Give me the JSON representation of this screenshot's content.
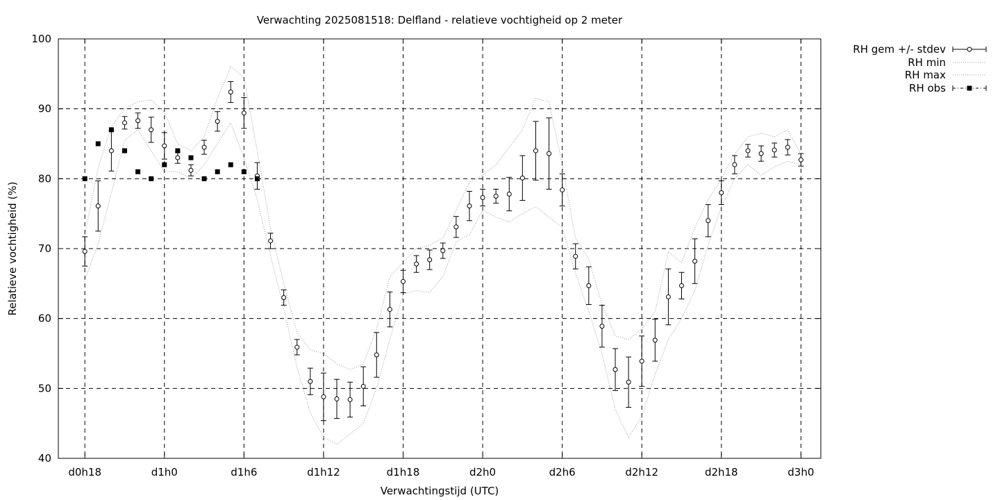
{
  "chart_data": {
    "type": "line",
    "title": "Verwachting 2025081518: Delfland - relatieve vochtigheid op 2 meter",
    "xlabel": "Verwachtingstijd (UTC)",
    "ylabel": "Relatieve vochtigheid (%)",
    "xlim": [
      -2,
      55.5
    ],
    "ylim": [
      40,
      100
    ],
    "yticks": [
      40,
      50,
      60,
      70,
      80,
      90,
      100
    ],
    "xticks": [
      {
        "x": 0,
        "label": "d0h18"
      },
      {
        "x": 6,
        "label": "d1h0"
      },
      {
        "x": 12,
        "label": "d1h6"
      },
      {
        "x": 18,
        "label": "d1h12"
      },
      {
        "x": 24,
        "label": "d1h18"
      },
      {
        "x": 30,
        "label": "d2h0"
      },
      {
        "x": 36,
        "label": "d2h6"
      },
      {
        "x": 42,
        "label": "d2h12"
      },
      {
        "x": 48,
        "label": "d2h18"
      },
      {
        "x": 54,
        "label": "d3h0"
      }
    ],
    "x_unit": "uren sinds d0h18",
    "grid": true,
    "legend_position": "outside-right",
    "series": [
      {
        "name": "RH gem +/- stdev",
        "style": "errorbars-open-circle",
        "x": [
          0,
          1,
          2,
          3,
          4,
          5,
          6,
          7,
          8,
          9,
          10,
          11,
          12,
          13,
          14,
          15,
          16,
          17,
          18,
          19,
          20,
          21,
          22,
          23,
          24,
          25,
          26,
          27,
          28,
          29,
          30,
          31,
          32,
          33,
          34,
          35,
          36,
          37,
          38,
          39,
          40,
          41,
          42,
          43,
          44,
          45,
          46,
          47,
          48,
          49,
          50,
          51,
          52,
          53,
          54
        ],
        "mean": [
          69.6,
          76.1,
          84.0,
          88.0,
          88.3,
          87.0,
          84.7,
          83.0,
          81.2,
          84.5,
          88.2,
          92.4,
          89.4,
          80.4,
          71.1,
          63.0,
          55.9,
          51.0,
          48.8,
          48.5,
          48.4,
          50.3,
          54.8,
          61.3,
          65.3,
          67.8,
          68.4,
          69.7,
          73.1,
          76.1,
          77.3,
          77.5,
          77.8,
          80.1,
          84.0,
          83.6,
          78.4,
          68.9,
          64.7,
          58.9,
          52.7,
          50.9,
          53.9,
          56.9,
          63.1,
          64.7,
          68.2,
          74.0,
          78.0,
          82.0,
          84.0,
          83.6,
          84.1,
          84.5,
          82.7
        ],
        "stdev": [
          2.1,
          3.6,
          2.9,
          0.9,
          1.1,
          1.8,
          1.9,
          0.8,
          0.8,
          1.0,
          1.4,
          1.5,
          2.2,
          1.9,
          1.1,
          1.1,
          1.1,
          1.9,
          3.4,
          2.8,
          2.5,
          2.8,
          3.2,
          2.5,
          1.6,
          1.2,
          1.4,
          1.1,
          1.5,
          2.1,
          1.2,
          1.0,
          2.4,
          3.2,
          4.2,
          5.1,
          2.3,
          1.8,
          2.7,
          3.0,
          3.0,
          3.6,
          3.6,
          3.0,
          4.0,
          1.9,
          3.2,
          2.3,
          1.7,
          1.3,
          0.9,
          1.1,
          1.0,
          1.1,
          0.9
        ]
      },
      {
        "name": "RH min",
        "style": "dotted",
        "x": [
          0,
          1,
          2,
          3,
          4,
          5,
          6,
          7,
          8,
          9,
          10,
          11,
          12,
          13,
          14,
          15,
          16,
          17,
          18,
          19,
          20,
          21,
          22,
          23,
          24,
          25,
          26,
          27,
          28,
          29,
          30,
          31,
          32,
          33,
          34,
          35,
          36,
          37,
          38,
          39,
          40,
          41,
          42,
          43,
          44,
          45,
          46,
          47,
          48,
          49,
          50,
          51,
          52,
          53,
          54
        ],
        "values": [
          65.5,
          70.7,
          78.0,
          85.5,
          87.0,
          84.0,
          81.0,
          81.0,
          80.0,
          82.0,
          85.0,
          88.0,
          83.0,
          77.0,
          69.0,
          61.5,
          53.0,
          46.5,
          43.0,
          42.0,
          43.5,
          45.0,
          50.0,
          57.0,
          63.5,
          64.0,
          63.7,
          66.0,
          71.0,
          72.0,
          75.5,
          74.5,
          73.8,
          75.0,
          76.0,
          74.5,
          73.0,
          66.5,
          61.0,
          55.0,
          47.0,
          43.0,
          46.0,
          52.0,
          57.0,
          60.0,
          64.0,
          70.5,
          76.0,
          80.0,
          82.0,
          80.5,
          81.7,
          82.5,
          82.0
        ]
      },
      {
        "name": "RH max",
        "style": "dotted",
        "x": [
          0,
          1,
          2,
          3,
          4,
          5,
          6,
          7,
          8,
          9,
          10,
          11,
          12,
          13,
          14,
          15,
          16,
          17,
          18,
          19,
          20,
          21,
          22,
          23,
          24,
          25,
          26,
          27,
          28,
          29,
          30,
          31,
          32,
          33,
          34,
          35,
          36,
          37,
          38,
          39,
          40,
          41,
          42,
          43,
          44,
          45,
          46,
          47,
          48,
          49,
          50,
          51,
          52,
          53,
          54
        ],
        "values": [
          72.0,
          81.5,
          87.5,
          90.0,
          91.0,
          91.3,
          89.5,
          85.0,
          84.0,
          86.0,
          91.5,
          96.0,
          94.5,
          84.0,
          73.0,
          65.0,
          58.0,
          55.5,
          55.0,
          53.5,
          52.7,
          53.5,
          58.5,
          66.0,
          68.0,
          70.0,
          70.5,
          71.5,
          75.5,
          79.5,
          80.5,
          82.0,
          84.5,
          87.0,
          91.5,
          91.0,
          82.0,
          71.5,
          68.5,
          62.0,
          57.5,
          57.0,
          58.5,
          61.0,
          69.5,
          68.0,
          73.0,
          77.0,
          80.0,
          83.5,
          86.0,
          86.5,
          86.0,
          87.0,
          83.5
        ]
      },
      {
        "name": "RH obs",
        "style": "filled-square",
        "x": [
          0,
          1,
          2,
          3,
          4,
          5,
          6,
          7,
          8,
          9,
          10,
          11,
          12,
          13
        ],
        "values": [
          80,
          85,
          87,
          84,
          81,
          80,
          82,
          84,
          83,
          80,
          81,
          82,
          81,
          80
        ]
      }
    ]
  }
}
